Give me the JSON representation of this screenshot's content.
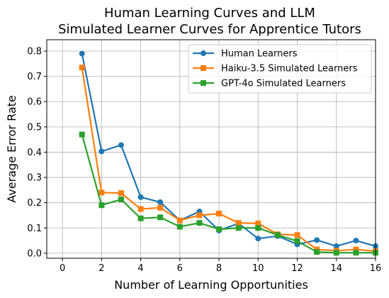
{
  "chart_data": {
    "type": "line",
    "title": [
      "Human Learning Curves and LLM",
      "Simulated Learner Curves for Apprentice Tutors"
    ],
    "xlabel": "Number of Learning Opportunities",
    "ylabel": "Average Error Rate",
    "xlim": [
      -0.8,
      16
    ],
    "ylim": [
      -0.02,
      0.845
    ],
    "xticks": [
      0,
      2,
      4,
      6,
      8,
      10,
      12,
      14,
      16
    ],
    "yticks": [
      0.0,
      0.1,
      0.2,
      0.3,
      0.4,
      0.5,
      0.6,
      0.7,
      0.8
    ],
    "ytick_labels": [
      "0.0",
      "0.1",
      "0.2",
      "0.3",
      "0.4",
      "0.5",
      "0.6",
      "0.7",
      "0.8"
    ],
    "grid": true,
    "legend_position": "top-right",
    "x": [
      1,
      2,
      3,
      4,
      5,
      6,
      7,
      8,
      9,
      10,
      11,
      12,
      13,
      14,
      15,
      16
    ],
    "series": [
      {
        "name": "Human Learners",
        "color": "#1f77b4",
        "marker": "circle",
        "values": [
          0.79,
          0.403,
          0.428,
          0.222,
          0.202,
          0.13,
          0.165,
          0.09,
          0.118,
          0.058,
          0.068,
          0.035,
          0.052,
          0.028,
          0.05,
          0.028
        ]
      },
      {
        "name": "Haiku-3.5 Simulated Learners",
        "color": "#ff7f0e",
        "marker": "square",
        "values": [
          0.735,
          0.24,
          0.238,
          0.175,
          0.18,
          0.13,
          0.15,
          0.157,
          0.12,
          0.118,
          0.075,
          0.072,
          0.015,
          0.01,
          0.015,
          0.008
        ]
      },
      {
        "name": "GPT-4o Simulated Learners",
        "color": "#2ca02c",
        "marker": "square",
        "values": [
          0.47,
          0.19,
          0.213,
          0.138,
          0.142,
          0.105,
          0.12,
          0.095,
          0.1,
          0.1,
          0.072,
          0.048,
          0.005,
          0.002,
          0.002,
          0.002
        ]
      }
    ]
  }
}
